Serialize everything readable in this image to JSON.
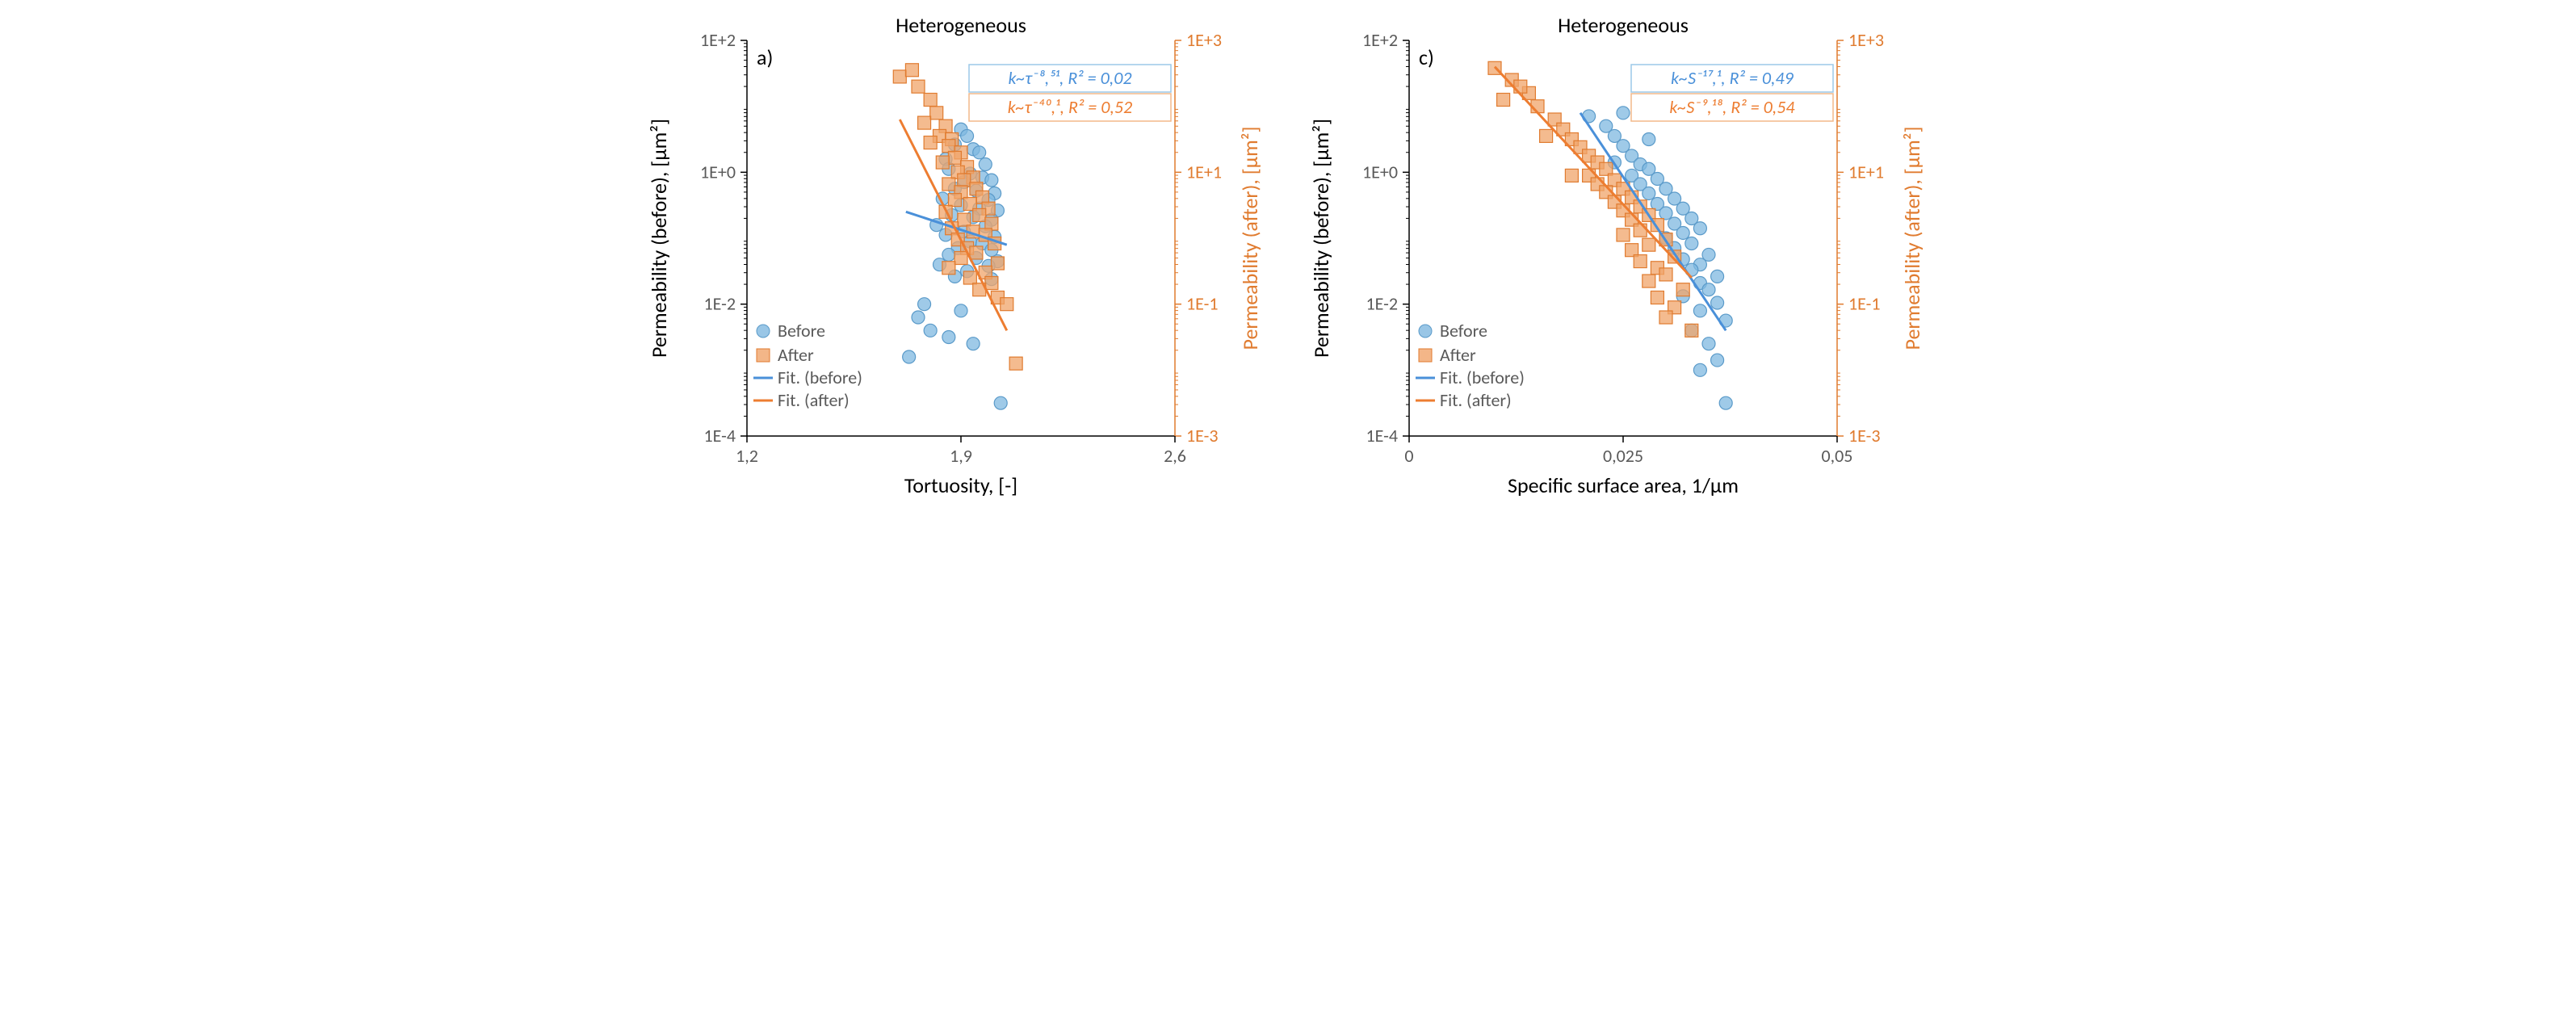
{
  "colors": {
    "before": "#7fb8e0",
    "before_stroke": "#5a9ac9",
    "after": "#f0a46a",
    "after_stroke": "#e07b2f",
    "fit_before": "#4a90d9",
    "fit_after": "#ed7d31",
    "axis_black": "#000000",
    "axis_gray": "#808080",
    "tick_gray": "#595959",
    "box_before": "#9cc9e8",
    "box_after": "#f2b98a"
  },
  "common": {
    "title": "Heterogeneous",
    "y_left_label": "Permeability (before), [µm²]",
    "y_right_label": "Permeability (after), [µm²]",
    "y_left_ticks": [
      "1E-4",
      "1E-2",
      "1E+0",
      "1E+2"
    ],
    "y_right_ticks": [
      "1E-3",
      "1E-1",
      "1E+1",
      "1E+3"
    ],
    "y_left_range": [
      -4,
      2
    ],
    "y_right_range": [
      -3,
      3
    ],
    "legend": {
      "before": "Before",
      "after": "After",
      "fit_before": "Fit. (before)",
      "fit_after": "Fit. (after)"
    }
  },
  "panel_a": {
    "letter": "a)",
    "x_label": "Tortuosity, [-]",
    "x_ticks": [
      "1,2",
      "1,9",
      "2,6"
    ],
    "x_range": [
      1.2,
      2.6
    ],
    "fit_before_text": "k~τ⁻⁸,⁵¹, R² = 0,02",
    "fit_after_text": "k~τ⁻⁴⁰,¹, R² = 0,52",
    "fit_before_line": {
      "x1": 1.72,
      "y1": -0.6,
      "x2": 2.05,
      "y2": -1.1
    },
    "fit_after_line": {
      "x1": 1.7,
      "y1": 0.8,
      "x2": 2.05,
      "y2": -2.4
    },
    "before_points": [
      [
        1.9,
        0.65
      ],
      [
        1.92,
        0.55
      ],
      [
        1.88,
        0.42
      ],
      [
        1.94,
        0.35
      ],
      [
        1.96,
        0.3
      ],
      [
        1.85,
        0.2
      ],
      [
        1.98,
        0.12
      ],
      [
        1.86,
        0.05
      ],
      [
        1.93,
        -0.02
      ],
      [
        1.97,
        -0.08
      ],
      [
        2.0,
        -0.12
      ],
      [
        1.91,
        -0.15
      ],
      [
        1.88,
        -0.25
      ],
      [
        1.95,
        -0.28
      ],
      [
        2.01,
        -0.32
      ],
      [
        1.84,
        -0.4
      ],
      [
        1.99,
        -0.42
      ],
      [
        1.9,
        -0.5
      ],
      [
        1.96,
        -0.55
      ],
      [
        2.02,
        -0.58
      ],
      [
        1.87,
        -0.65
      ],
      [
        1.94,
        -0.68
      ],
      [
        2.0,
        -0.72
      ],
      [
        1.82,
        -0.8
      ],
      [
        1.98,
        -0.82
      ],
      [
        1.91,
        -0.9
      ],
      [
        1.85,
        -0.95
      ],
      [
        2.01,
        -0.98
      ],
      [
        1.93,
        -1.05
      ],
      [
        1.97,
        -1.08
      ],
      [
        1.89,
        -1.15
      ],
      [
        2.0,
        -1.18
      ],
      [
        1.86,
        -1.25
      ],
      [
        1.95,
        -1.3
      ],
      [
        2.02,
        -1.35
      ],
      [
        1.83,
        -1.4
      ],
      [
        1.99,
        -1.42
      ],
      [
        1.92,
        -1.5
      ],
      [
        1.88,
        -1.58
      ],
      [
        2.0,
        -1.62
      ],
      [
        1.76,
        -2.2
      ],
      [
        1.8,
        -2.4
      ],
      [
        1.86,
        -2.5
      ],
      [
        1.94,
        -2.6
      ],
      [
        1.73,
        -2.8
      ],
      [
        2.03,
        -3.5
      ],
      [
        1.9,
        -2.1
      ],
      [
        1.78,
        -2.0
      ]
    ],
    "after_points": [
      [
        1.7,
        1.45
      ],
      [
        1.76,
        1.3
      ],
      [
        1.74,
        1.55
      ],
      [
        1.8,
        1.1
      ],
      [
        1.82,
        0.9
      ],
      [
        1.78,
        0.75
      ],
      [
        1.85,
        0.7
      ],
      [
        1.83,
        0.55
      ],
      [
        1.87,
        0.5
      ],
      [
        1.86,
        0.4
      ],
      [
        1.9,
        0.3
      ],
      [
        1.88,
        0.22
      ],
      [
        1.84,
        0.15
      ],
      [
        1.92,
        0.08
      ],
      [
        1.89,
        0.0
      ],
      [
        1.94,
        -0.08
      ],
      [
        1.91,
        -0.12
      ],
      [
        1.86,
        -0.18
      ],
      [
        1.95,
        -0.25
      ],
      [
        1.9,
        -0.3
      ],
      [
        1.97,
        -0.38
      ],
      [
        1.88,
        -0.42
      ],
      [
        1.93,
        -0.48
      ],
      [
        1.99,
        -0.55
      ],
      [
        1.85,
        -0.6
      ],
      [
        1.96,
        -0.65
      ],
      [
        1.91,
        -0.72
      ],
      [
        2.0,
        -0.78
      ],
      [
        1.87,
        -0.85
      ],
      [
        1.94,
        -0.9
      ],
      [
        1.98,
        -0.95
      ],
      [
        1.89,
        -1.02
      ],
      [
        2.01,
        -1.08
      ],
      [
        1.92,
        -1.15
      ],
      [
        1.95,
        -1.22
      ],
      [
        1.9,
        -1.3
      ],
      [
        2.02,
        -1.38
      ],
      [
        1.86,
        -1.45
      ],
      [
        1.98,
        -1.52
      ],
      [
        1.93,
        -1.6
      ],
      [
        2.0,
        -1.68
      ],
      [
        1.96,
        -1.78
      ],
      [
        2.02,
        -1.9
      ],
      [
        2.08,
        -2.9
      ],
      [
        2.05,
        -2.0
      ],
      [
        1.8,
        0.45
      ]
    ]
  },
  "panel_c": {
    "letter": "c)",
    "x_label": "Specific surface area, 1/µm",
    "x_ticks": [
      "0",
      "0,025",
      "0,05"
    ],
    "x_range": [
      0,
      0.05
    ],
    "fit_before_text": "k~S⁻¹⁷,¹, R² = 0,49",
    "fit_after_text": "k~S⁻⁹,¹⁸, R² = 0,54",
    "fit_before_line": {
      "x1": 0.02,
      "y1": 0.9,
      "x2": 0.037,
      "y2": -2.4
    },
    "fit_after_line": {
      "x1": 0.01,
      "y1": 1.6,
      "x2": 0.033,
      "y2": -1.6
    },
    "before_points": [
      [
        0.021,
        0.85
      ],
      [
        0.023,
        0.7
      ],
      [
        0.024,
        0.55
      ],
      [
        0.025,
        0.4
      ],
      [
        0.026,
        0.25
      ],
      [
        0.027,
        0.12
      ],
      [
        0.028,
        0.05
      ],
      [
        0.026,
        -0.05
      ],
      [
        0.029,
        -0.1
      ],
      [
        0.027,
        -0.18
      ],
      [
        0.03,
        -0.25
      ],
      [
        0.028,
        -0.32
      ],
      [
        0.031,
        -0.4
      ],
      [
        0.029,
        -0.48
      ],
      [
        0.032,
        -0.55
      ],
      [
        0.03,
        -0.62
      ],
      [
        0.033,
        -0.7
      ],
      [
        0.031,
        -0.78
      ],
      [
        0.034,
        -0.85
      ],
      [
        0.032,
        -0.92
      ],
      [
        0.03,
        -1.0
      ],
      [
        0.033,
        -1.08
      ],
      [
        0.031,
        -1.15
      ],
      [
        0.035,
        -1.25
      ],
      [
        0.032,
        -1.32
      ],
      [
        0.034,
        -1.4
      ],
      [
        0.033,
        -1.48
      ],
      [
        0.036,
        -1.58
      ],
      [
        0.034,
        -1.68
      ],
      [
        0.035,
        -1.78
      ],
      [
        0.032,
        -1.88
      ],
      [
        0.036,
        -1.98
      ],
      [
        0.034,
        -2.1
      ],
      [
        0.037,
        -2.25
      ],
      [
        0.033,
        -2.4
      ],
      [
        0.035,
        -2.6
      ],
      [
        0.036,
        -2.85
      ],
      [
        0.034,
        -3.0
      ],
      [
        0.037,
        -3.5
      ],
      [
        0.025,
        0.9
      ],
      [
        0.028,
        0.5
      ],
      [
        0.024,
        0.15
      ]
    ],
    "after_points": [
      [
        0.01,
        1.58
      ],
      [
        0.012,
        1.4
      ],
      [
        0.014,
        1.2
      ],
      [
        0.015,
        1.0
      ],
      [
        0.017,
        0.8
      ],
      [
        0.018,
        0.65
      ],
      [
        0.019,
        0.5
      ],
      [
        0.02,
        0.38
      ],
      [
        0.021,
        0.25
      ],
      [
        0.022,
        0.15
      ],
      [
        0.023,
        0.05
      ],
      [
        0.021,
        -0.05
      ],
      [
        0.024,
        -0.12
      ],
      [
        0.022,
        -0.18
      ],
      [
        0.025,
        -0.25
      ],
      [
        0.023,
        -0.3
      ],
      [
        0.026,
        -0.38
      ],
      [
        0.024,
        -0.45
      ],
      [
        0.027,
        -0.52
      ],
      [
        0.025,
        -0.58
      ],
      [
        0.028,
        -0.65
      ],
      [
        0.026,
        -0.72
      ],
      [
        0.029,
        -0.8
      ],
      [
        0.027,
        -0.88
      ],
      [
        0.025,
        -0.95
      ],
      [
        0.03,
        -1.02
      ],
      [
        0.028,
        -1.1
      ],
      [
        0.026,
        -1.18
      ],
      [
        0.031,
        -1.28
      ],
      [
        0.027,
        -1.35
      ],
      [
        0.029,
        -1.45
      ],
      [
        0.03,
        -1.55
      ],
      [
        0.028,
        -1.65
      ],
      [
        0.032,
        -1.78
      ],
      [
        0.029,
        -1.9
      ],
      [
        0.031,
        -2.05
      ],
      [
        0.03,
        -2.2
      ],
      [
        0.033,
        -2.4
      ],
      [
        0.011,
        1.1
      ],
      [
        0.016,
        0.55
      ],
      [
        0.019,
        -0.05
      ],
      [
        0.013,
        1.3
      ]
    ]
  }
}
